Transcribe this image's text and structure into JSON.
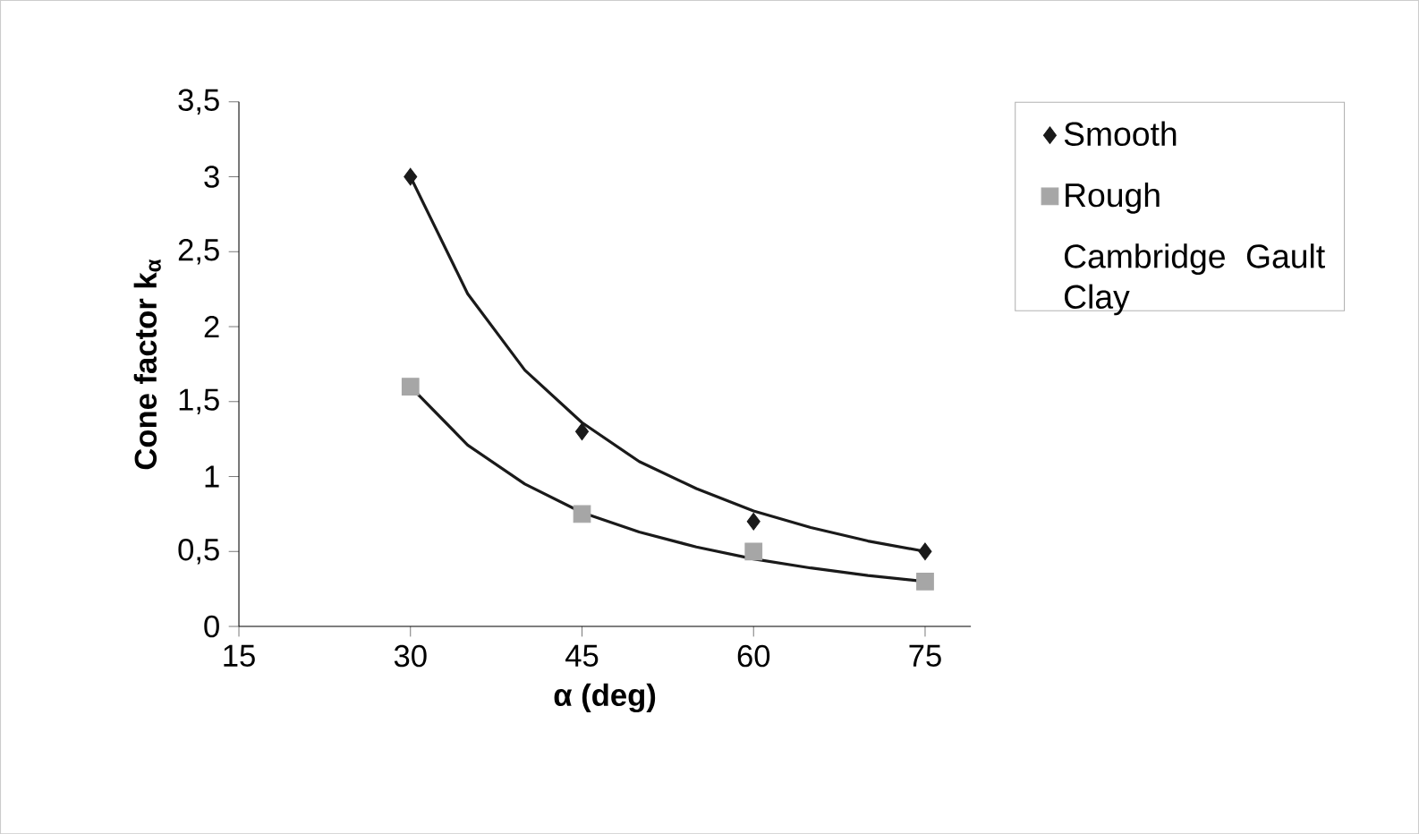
{
  "chart_data": {
    "type": "scatter",
    "xlabel": "α (deg)",
    "ylabel": "Cone factor k$_{α}$",
    "legend_title": "Cambridge Gault Clay",
    "xlim": [
      15,
      79
    ],
    "xticks": [
      15,
      30,
      45,
      60,
      75
    ],
    "ylim": [
      0,
      3.5
    ],
    "yticks": [
      0,
      {
        "value": 0.5,
        "label": "0,5"
      },
      1,
      {
        "value": 1.5,
        "label": "1,5"
      },
      2,
      {
        "value": 2.5,
        "label": "2,5"
      },
      3,
      {
        "value": 3.5,
        "label": "3,5"
      }
    ],
    "legend": "right",
    "grid": false,
    "series": [
      {
        "name": "Smooth",
        "marker": "diamond",
        "color": "#1a1a1a",
        "x": [
          30,
          45,
          60,
          75
        ],
        "values": [
          3,
          1.3,
          0.7,
          0.5
        ]
      },
      {
        "name": "Rough",
        "marker": "square",
        "color": "#a6a6a6",
        "x": [
          30,
          45,
          60,
          75
        ],
        "values": [
          1.6,
          0.75,
          0.5,
          0.3
        ]
      },
      {
        "type": "line",
        "marker": "none",
        "color": "#1a1a1a",
        "x": [
          30,
          35,
          40,
          45,
          50,
          55,
          60,
          65,
          70,
          75
        ],
        "values": [
          3,
          2.22,
          1.71,
          1.36,
          1.1,
          0.92,
          0.77,
          0.66,
          0.57,
          0.5
        ]
      },
      {
        "type": "line",
        "marker": "none",
        "color": "#1a1a1a",
        "x": [
          30,
          35,
          40,
          45,
          50,
          55,
          60,
          65,
          70,
          75
        ],
        "values": [
          1.6,
          1.21,
          0.95,
          0.76,
          0.63,
          0.53,
          0.45,
          0.39,
          0.34,
          0.3
        ]
      }
    ]
  }
}
